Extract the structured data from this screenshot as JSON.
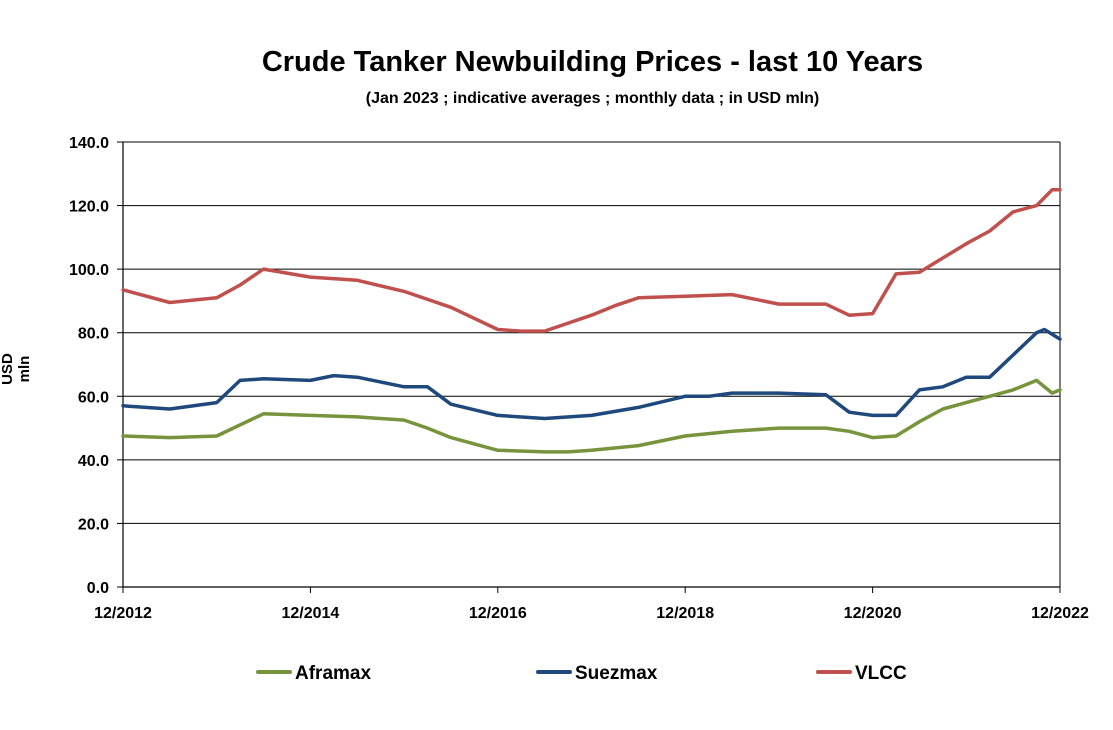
{
  "chart_data": {
    "type": "line",
    "title": "Crude Tanker Newbuilding Prices - last 10 Years",
    "subtitle": "(Jan 2023 ; indicative averages ; monthly data ; in USD mln)",
    "ylabel": "USD mln",
    "xlabel": "",
    "ylim": [
      0,
      140
    ],
    "yticks": [
      "0.0",
      "20.0",
      "40.0",
      "60.0",
      "80.0",
      "100.0",
      "120.0",
      "140.0"
    ],
    "xtick_labels": [
      "12/2012",
      "12/2014",
      "12/2016",
      "12/2018",
      "12/2020",
      "12/2022"
    ],
    "x_range": [
      "12/2012",
      "12/2022"
    ],
    "grid": "horizontal",
    "legend_position": "bottom",
    "series": [
      {
        "name": "Aframax",
        "color": "#77933C",
        "x": [
          "12/2012",
          "06/2013",
          "12/2013",
          "06/2014",
          "12/2014",
          "06/2015",
          "12/2015",
          "03/2016",
          "06/2016",
          "12/2016",
          "06/2017",
          "09/2017",
          "12/2017",
          "06/2018",
          "12/2018",
          "06/2019",
          "12/2019",
          "06/2020",
          "09/2020",
          "12/2020",
          "03/2021",
          "06/2021",
          "09/2021",
          "12/2021",
          "06/2022",
          "09/2022",
          "11/2022",
          "12/2022"
        ],
        "values": [
          47.5,
          47,
          47.5,
          54.5,
          54,
          53.5,
          52.5,
          50,
          47,
          43,
          42.5,
          42.5,
          43,
          44.5,
          47.5,
          49,
          50,
          50,
          49,
          47,
          47.5,
          52,
          56,
          58,
          62,
          65,
          61,
          62
        ]
      },
      {
        "name": "Suezmax",
        "color": "#1F497D",
        "x": [
          "12/2012",
          "06/2013",
          "12/2013",
          "03/2014",
          "06/2014",
          "12/2014",
          "03/2015",
          "06/2015",
          "12/2015",
          "03/2016",
          "06/2016",
          "12/2016",
          "06/2017",
          "12/2017",
          "06/2018",
          "12/2018",
          "03/2019",
          "06/2019",
          "12/2019",
          "06/2020",
          "09/2020",
          "12/2020",
          "03/2021",
          "06/2021",
          "09/2021",
          "12/2021",
          "03/2022",
          "06/2022",
          "09/2022",
          "10/2022",
          "12/2022"
        ],
        "values": [
          57,
          56,
          58,
          65,
          65.5,
          65,
          66.5,
          66,
          63,
          63,
          57.5,
          54,
          53,
          54,
          56.5,
          60,
          60,
          61,
          61,
          60.5,
          55,
          54,
          54,
          62,
          63,
          66,
          66,
          73,
          80,
          81,
          78
        ]
      },
      {
        "name": "VLCC",
        "color": "#C0504D",
        "x": [
          "12/2012",
          "06/2013",
          "12/2013",
          "03/2014",
          "06/2014",
          "12/2014",
          "06/2015",
          "12/2015",
          "06/2016",
          "12/2016",
          "03/2017",
          "06/2017",
          "12/2017",
          "03/2018",
          "06/2018",
          "12/2018",
          "06/2019",
          "12/2019",
          "06/2020",
          "09/2020",
          "12/2020",
          "03/2021",
          "06/2021",
          "12/2021",
          "03/2022",
          "06/2022",
          "09/2022",
          "11/2022",
          "12/2022"
        ],
        "values": [
          93.5,
          89.5,
          91,
          95,
          100,
          97.5,
          96.5,
          93,
          88,
          81,
          80.5,
          80.5,
          85.5,
          88.5,
          91,
          91.5,
          92,
          89,
          89,
          85.5,
          86,
          98.5,
          99,
          108,
          112,
          118,
          120,
          125,
          125
        ]
      }
    ]
  }
}
